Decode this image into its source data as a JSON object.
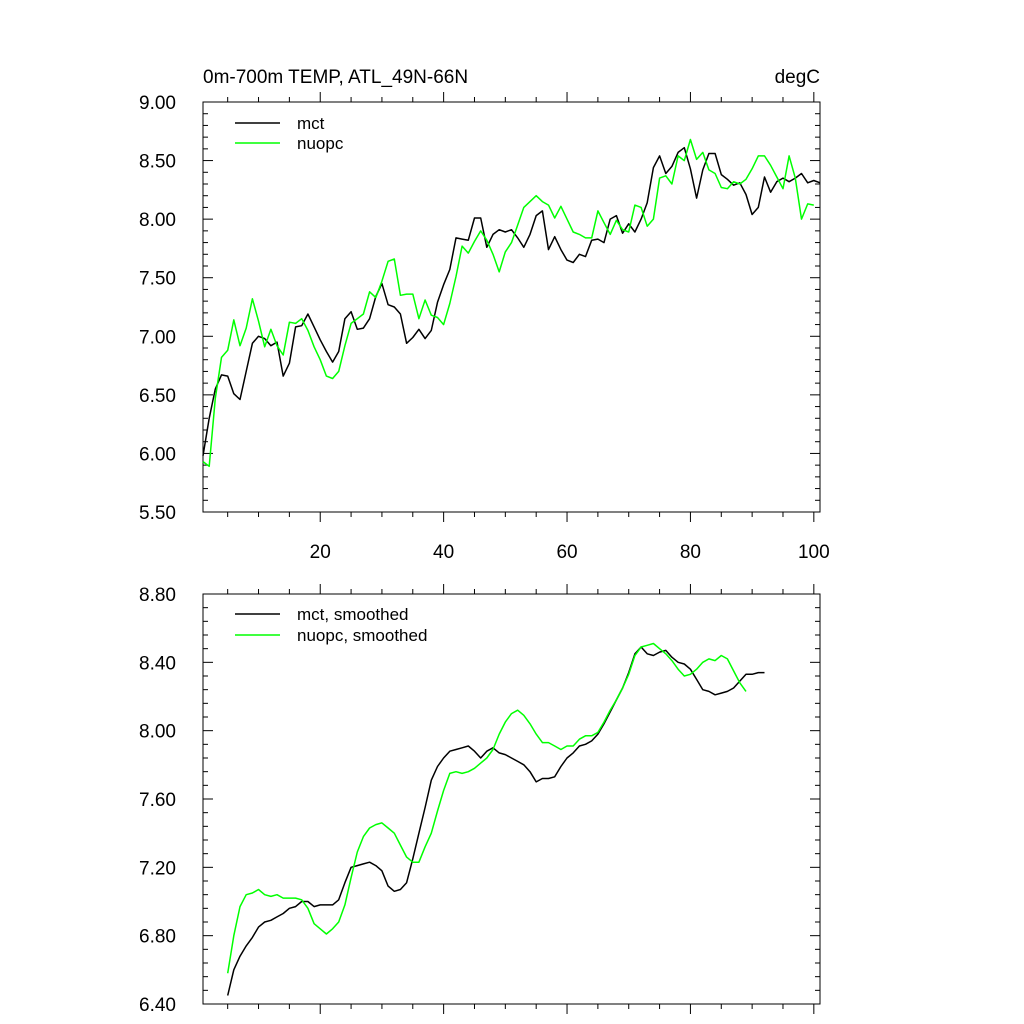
{
  "colors": {
    "mct": "#000000",
    "nuopc": "#00ff00",
    "axes": "#000000"
  },
  "chart_data": [
    {
      "type": "line",
      "title_left": "0m-700m TEMP, ATL_49N-66N",
      "title_right": "degC",
      "xlabel": "",
      "ylabel": "",
      "xlim": [
        1,
        101
      ],
      "ylim": [
        5.5,
        9.0
      ],
      "yticks": [
        "5.50",
        "6.00",
        "6.50",
        "7.00",
        "7.50",
        "8.00",
        "8.50",
        "9.00"
      ],
      "xticks": [
        "20",
        "40",
        "60",
        "80",
        "100"
      ],
      "grid": false,
      "legend": "top-left",
      "series": [
        {
          "name": "mct",
          "color": "#000000",
          "x_start": 1,
          "values": [
            5.98,
            6.3,
            6.55,
            6.67,
            6.66,
            6.51,
            6.46,
            6.7,
            6.94,
            7.0,
            6.98,
            6.92,
            6.95,
            6.66,
            6.77,
            7.08,
            7.09,
            7.19,
            7.08,
            6.97,
            6.87,
            6.78,
            6.87,
            7.15,
            7.21,
            7.06,
            7.07,
            7.15,
            7.34,
            7.45,
            7.27,
            7.25,
            7.19,
            6.94,
            6.99,
            7.06,
            6.98,
            7.05,
            7.29,
            7.44,
            7.57,
            7.84,
            7.83,
            7.82,
            8.01,
            8.01,
            7.76,
            7.87,
            7.91,
            7.89,
            7.91,
            7.84,
            7.76,
            7.87,
            8.03,
            8.07,
            7.74,
            7.85,
            7.74,
            7.65,
            7.63,
            7.7,
            7.68,
            7.82,
            7.83,
            7.8,
            8.0,
            8.03,
            7.88,
            7.96,
            7.89,
            8.0,
            8.14,
            8.44,
            8.54,
            8.39,
            8.45,
            8.57,
            8.61,
            8.43,
            8.18,
            8.42,
            8.56,
            8.56,
            8.38,
            8.34,
            8.29,
            8.31,
            8.21,
            8.04,
            8.1,
            8.36,
            8.23,
            8.32,
            8.35,
            8.32,
            8.35,
            8.39,
            8.31,
            8.33,
            8.31
          ]
        },
        {
          "name": "nuopc",
          "color": "#00ff00",
          "x_start": 1,
          "values": [
            5.93,
            5.89,
            6.47,
            6.82,
            6.88,
            7.14,
            6.92,
            7.07,
            7.32,
            7.13,
            6.91,
            7.06,
            6.92,
            6.84,
            7.12,
            7.11,
            7.15,
            7.05,
            6.91,
            6.8,
            6.66,
            6.64,
            6.7,
            6.92,
            7.11,
            7.15,
            7.19,
            7.38,
            7.33,
            7.47,
            7.64,
            7.66,
            7.35,
            7.36,
            7.36,
            7.15,
            7.31,
            7.18,
            7.16,
            7.1,
            7.28,
            7.51,
            7.77,
            7.71,
            7.81,
            7.9,
            7.82,
            7.7,
            7.55,
            7.72,
            7.8,
            7.95,
            8.1,
            8.15,
            8.2,
            8.15,
            8.12,
            8.01,
            8.11,
            8.0,
            7.89,
            7.87,
            7.84,
            7.84,
            8.07,
            7.97,
            7.87,
            7.99,
            7.91,
            7.89,
            8.12,
            8.1,
            7.94,
            8.0,
            8.35,
            8.37,
            8.3,
            8.54,
            8.5,
            8.68,
            8.51,
            8.57,
            8.42,
            8.39,
            8.27,
            8.26,
            8.32,
            8.3,
            8.34,
            8.43,
            8.54,
            8.54,
            8.46,
            8.36,
            8.26,
            8.54,
            8.35,
            8.0,
            8.13,
            8.12
          ]
        }
      ]
    },
    {
      "type": "line",
      "xlabel": "",
      "ylabel": "",
      "xlim": [
        1,
        101
      ],
      "ylim": [
        6.4,
        8.8
      ],
      "yticks": [
        "6.40",
        "6.80",
        "7.20",
        "7.60",
        "8.00",
        "8.40",
        "8.80"
      ],
      "grid": false,
      "legend": "top-left",
      "series": [
        {
          "name": "mct, smoothed",
          "color": "#000000",
          "x_start": 5,
          "values": [
            6.45,
            6.6,
            6.68,
            6.74,
            6.79,
            6.85,
            6.88,
            6.89,
            6.91,
            6.93,
            6.96,
            6.97,
            7.0,
            7.0,
            6.97,
            6.98,
            6.98,
            6.98,
            7.01,
            7.11,
            7.2,
            7.21,
            7.22,
            7.23,
            7.21,
            7.18,
            7.09,
            7.06,
            7.07,
            7.11,
            7.25,
            7.4,
            7.55,
            7.71,
            7.79,
            7.84,
            7.88,
            7.89,
            7.9,
            7.91,
            7.88,
            7.84,
            7.88,
            7.9,
            7.87,
            7.86,
            7.84,
            7.82,
            7.8,
            7.76,
            7.7,
            7.72,
            7.72,
            7.73,
            7.79,
            7.84,
            7.87,
            7.91,
            7.92,
            7.94,
            7.98,
            8.04,
            8.11,
            8.18,
            8.25,
            8.34,
            8.45,
            8.49,
            8.45,
            8.44,
            8.46,
            8.47,
            8.43,
            8.4,
            8.39,
            8.36,
            8.3,
            8.24,
            8.23,
            8.21,
            8.22,
            8.23,
            8.25,
            8.29,
            8.33,
            8.33,
            8.34,
            8.34
          ]
        },
        {
          "name": "nuopc, smoothed",
          "color": "#00ff00",
          "x_start": 5,
          "values": [
            6.58,
            6.8,
            6.97,
            7.04,
            7.05,
            7.07,
            7.04,
            7.03,
            7.04,
            7.02,
            7.02,
            7.02,
            7.01,
            6.96,
            6.87,
            6.84,
            6.81,
            6.84,
            6.88,
            6.98,
            7.14,
            7.29,
            7.38,
            7.43,
            7.45,
            7.46,
            7.43,
            7.4,
            7.33,
            7.26,
            7.23,
            7.23,
            7.32,
            7.4,
            7.53,
            7.65,
            7.75,
            7.76,
            7.75,
            7.76,
            7.78,
            7.81,
            7.84,
            7.89,
            7.98,
            8.05,
            8.1,
            8.12,
            8.09,
            8.04,
            7.98,
            7.93,
            7.93,
            7.91,
            7.89,
            7.91,
            7.91,
            7.95,
            7.97,
            7.97,
            7.99,
            8.05,
            8.12,
            8.18,
            8.25,
            8.33,
            8.44,
            8.49,
            8.5,
            8.51,
            8.48,
            8.45,
            8.41,
            8.36,
            8.32,
            8.33,
            8.36,
            8.4,
            8.42,
            8.41,
            8.44,
            8.42,
            8.35,
            8.28,
            8.23
          ]
        }
      ]
    }
  ]
}
